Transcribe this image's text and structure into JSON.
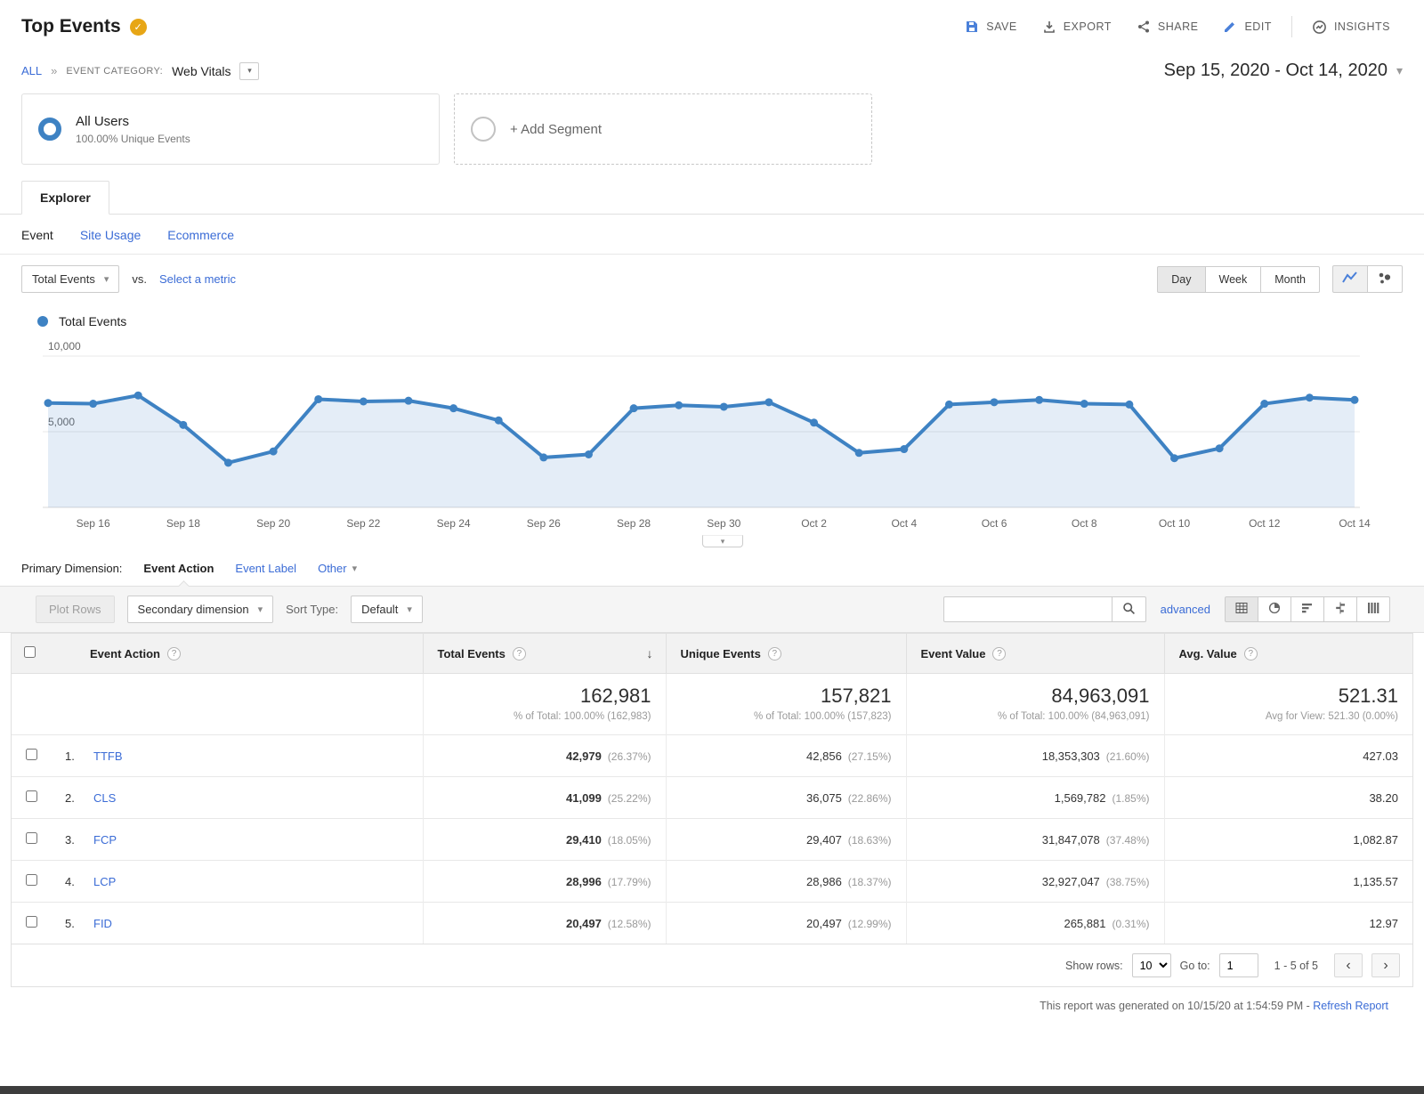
{
  "header": {
    "title": "Top Events",
    "actions": [
      "SAVE",
      "EXPORT",
      "SHARE",
      "EDIT",
      "INSIGHTS"
    ]
  },
  "breadcrumb": {
    "all": "ALL",
    "category_label": "EVENT CATEGORY:",
    "category_value": "Web Vitals"
  },
  "date_range": "Sep 15, 2020 - Oct 14, 2020",
  "segments": {
    "all_users": {
      "title": "All Users",
      "subtitle": "100.00% Unique Events"
    },
    "add_segment": "+ Add Segment"
  },
  "explorer": {
    "tab": "Explorer",
    "subtabs": [
      "Event",
      "Site Usage",
      "Ecommerce"
    ],
    "metric_selector": "Total Events",
    "vs_label": "vs.",
    "select_metric": "Select a metric",
    "granularity": [
      "Day",
      "Week",
      "Month"
    ],
    "active_granularity": "Day",
    "legend": "Total Events"
  },
  "chart_data": {
    "type": "line",
    "title": "Total Events by day",
    "series": [
      {
        "name": "Total Events",
        "x": [
          "Sep 15",
          "Sep 16",
          "Sep 17",
          "Sep 18",
          "Sep 19",
          "Sep 20",
          "Sep 21",
          "Sep 22",
          "Sep 23",
          "Sep 24",
          "Sep 25",
          "Sep 26",
          "Sep 27",
          "Sep 28",
          "Sep 29",
          "Sep 30",
          "Oct 1",
          "Oct 2",
          "Oct 3",
          "Oct 4",
          "Oct 5",
          "Oct 6",
          "Oct 7",
          "Oct 8",
          "Oct 9",
          "Oct 10",
          "Oct 11",
          "Oct 12",
          "Oct 13",
          "Oct 14"
        ],
        "values": [
          6900,
          6850,
          7400,
          5450,
          2950,
          3700,
          7150,
          7000,
          7050,
          6550,
          5750,
          3300,
          3500,
          6550,
          6750,
          6650,
          6950,
          5600,
          3600,
          3850,
          6800,
          6950,
          7100,
          6850,
          6800,
          3250,
          3900,
          6850,
          7250,
          7100
        ]
      }
    ],
    "ylim": [
      0,
      10000
    ],
    "yticks": [
      10000,
      5000
    ],
    "ytick_labels": [
      "10,000",
      "5,000"
    ],
    "x_axis_labels": [
      "Sep 16",
      "Sep 18",
      "Sep 20",
      "Sep 22",
      "Sep 24",
      "Sep 26",
      "Sep 28",
      "Sep 30",
      "Oct 2",
      "Oct 4",
      "Oct 6",
      "Oct 8",
      "Oct 10",
      "Oct 12",
      "Oct 14"
    ],
    "grid": true,
    "line_color": "#3e82c3",
    "area_color": "rgba(62,130,195,0.14)",
    "legend_position": "top-left"
  },
  "dimension_bar": {
    "label": "Primary Dimension:",
    "options": [
      "Event Action",
      "Event Label",
      "Other"
    ],
    "active": "Event Action"
  },
  "toolbar": {
    "plot_rows": "Plot Rows",
    "secondary_dimension": "Secondary dimension",
    "sort_type_label": "Sort Type:",
    "sort_type_value": "Default",
    "advanced_label": "advanced"
  },
  "table": {
    "columns": [
      "Event Action",
      "Total Events",
      "Unique Events",
      "Event Value",
      "Avg. Value"
    ],
    "totals": {
      "total_events": "162,981",
      "total_events_note": "% of Total: 100.00% (162,983)",
      "unique_events": "157,821",
      "unique_events_note": "% of Total: 100.00% (157,823)",
      "event_value": "84,963,091",
      "event_value_note": "% of Total: 100.00% (84,963,091)",
      "avg_value": "521.31",
      "avg_value_note": "Avg for View: 521.30 (0.00%)"
    },
    "rows": [
      {
        "rank": "1.",
        "name": "TTFB",
        "total_events": "42,979",
        "total_events_pct": "(26.37%)",
        "unique_events": "42,856",
        "unique_events_pct": "(27.15%)",
        "event_value": "18,353,303",
        "event_value_pct": "(21.60%)",
        "avg_value": "427.03"
      },
      {
        "rank": "2.",
        "name": "CLS",
        "total_events": "41,099",
        "total_events_pct": "(25.22%)",
        "unique_events": "36,075",
        "unique_events_pct": "(22.86%)",
        "event_value": "1,569,782",
        "event_value_pct": "(1.85%)",
        "avg_value": "38.20"
      },
      {
        "rank": "3.",
        "name": "FCP",
        "total_events": "29,410",
        "total_events_pct": "(18.05%)",
        "unique_events": "29,407",
        "unique_events_pct": "(18.63%)",
        "event_value": "31,847,078",
        "event_value_pct": "(37.48%)",
        "avg_value": "1,082.87"
      },
      {
        "rank": "4.",
        "name": "LCP",
        "total_events": "28,996",
        "total_events_pct": "(17.79%)",
        "unique_events": "28,986",
        "unique_events_pct": "(18.37%)",
        "event_value": "32,927,047",
        "event_value_pct": "(38.75%)",
        "avg_value": "1,135.57"
      },
      {
        "rank": "5.",
        "name": "FID",
        "total_events": "20,497",
        "total_events_pct": "(12.58%)",
        "unique_events": "20,497",
        "unique_events_pct": "(12.99%)",
        "event_value": "265,881",
        "event_value_pct": "(0.31%)",
        "avg_value": "12.97"
      }
    ]
  },
  "pagination": {
    "show_rows_label": "Show rows:",
    "show_rows_value": "10",
    "goto_label": "Go to:",
    "goto_value": "1",
    "range_text": "1 - 5 of 5"
  },
  "footer_note": {
    "text": "This report was generated on 10/15/20 at 1:54:59 PM -",
    "refresh_label": "Refresh Report"
  },
  "colors": {
    "link": "#3b6cd6",
    "chart_line": "#3e82c3",
    "badge_gold": "#e7a616",
    "toolbar_bg": "#f5f5f5",
    "table_header_bg": "#f2f2f2",
    "border": "#e0e0e0",
    "text": "#333333",
    "muted": "#666666"
  }
}
